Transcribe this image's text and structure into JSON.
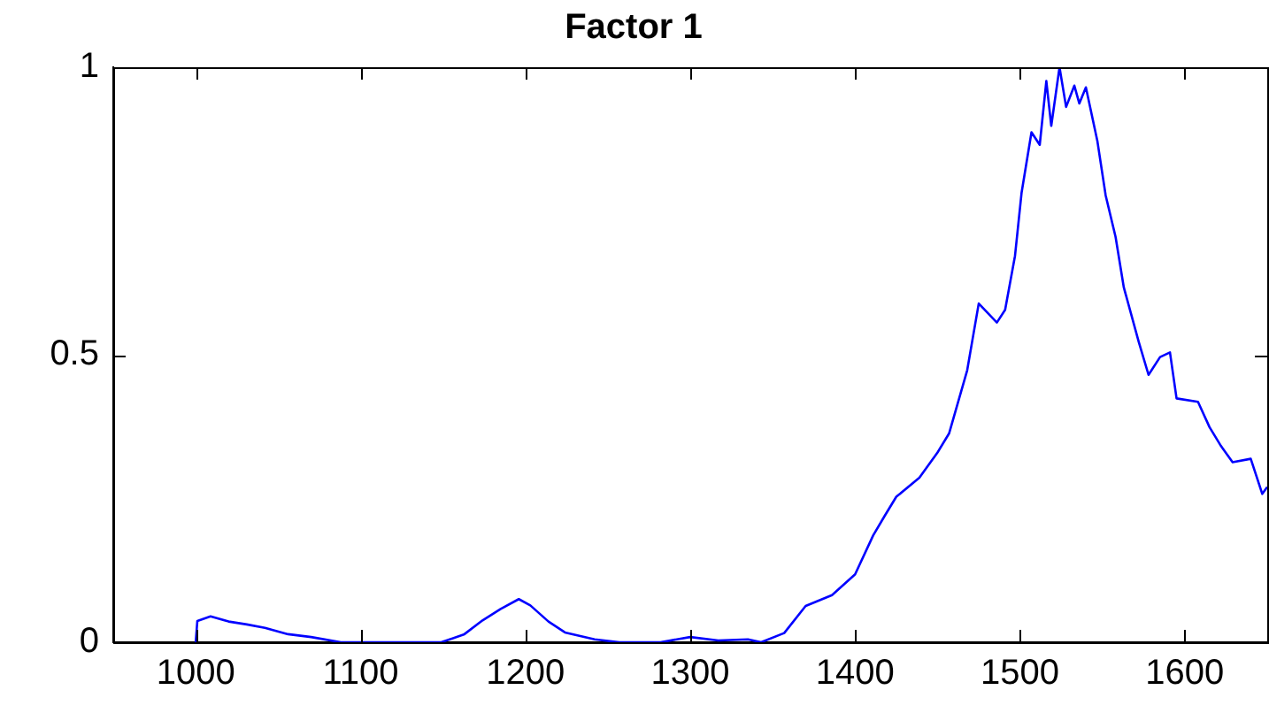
{
  "chart_data": {
    "type": "line",
    "title": "Factor 1",
    "xlim": [
      950,
      1650
    ],
    "xticks": [
      1000,
      1100,
      1200,
      1300,
      1400,
      1500,
      1600
    ],
    "ylim": [
      0,
      1
    ],
    "yticks": [
      0,
      0.5,
      1
    ],
    "grid": false,
    "legend": false,
    "marker": "none",
    "line_style": "solid",
    "series": [
      {
        "color": "#0000ff",
        "x": [
          1000,
          1001,
          1009,
          1020,
          1031,
          1042,
          1056,
          1070,
          1088,
          1149,
          1163,
          1174,
          1185,
          1196,
          1203,
          1214,
          1224,
          1242,
          1257,
          1282,
          1300,
          1317,
          1335,
          1343,
          1357,
          1370,
          1386,
          1400,
          1411,
          1418,
          1425,
          1439,
          1450,
          1457,
          1468,
          1475,
          1486,
          1491,
          1497,
          1501,
          1507,
          1512,
          1516,
          1519,
          1524,
          1528,
          1533,
          1536,
          1540,
          1547,
          1552,
          1558,
          1563,
          1572,
          1578,
          1585,
          1591,
          1595,
          1608,
          1615,
          1622,
          1629,
          1640,
          1647,
          1650
        ],
        "values": [
          0,
          0.037,
          0.045,
          0.036,
          0.031,
          0.025,
          0.014,
          0.009,
          0,
          0,
          0.014,
          0.038,
          0.058,
          0.075,
          0.064,
          0.036,
          0.017,
          0.005,
          0,
          0,
          0.009,
          0.003,
          0.005,
          0,
          0.016,
          0.063,
          0.082,
          0.118,
          0.186,
          0.22,
          0.253,
          0.286,
          0.33,
          0.363,
          0.473,
          0.589,
          0.556,
          0.578,
          0.672,
          0.782,
          0.887,
          0.865,
          0.976,
          0.898,
          1.0,
          0.931,
          0.968,
          0.937,
          0.965,
          0.871,
          0.777,
          0.705,
          0.617,
          0.523,
          0.465,
          0.496,
          0.504,
          0.424,
          0.418,
          0.374,
          0.341,
          0.313,
          0.319,
          0.258,
          0.27
        ]
      }
    ]
  }
}
